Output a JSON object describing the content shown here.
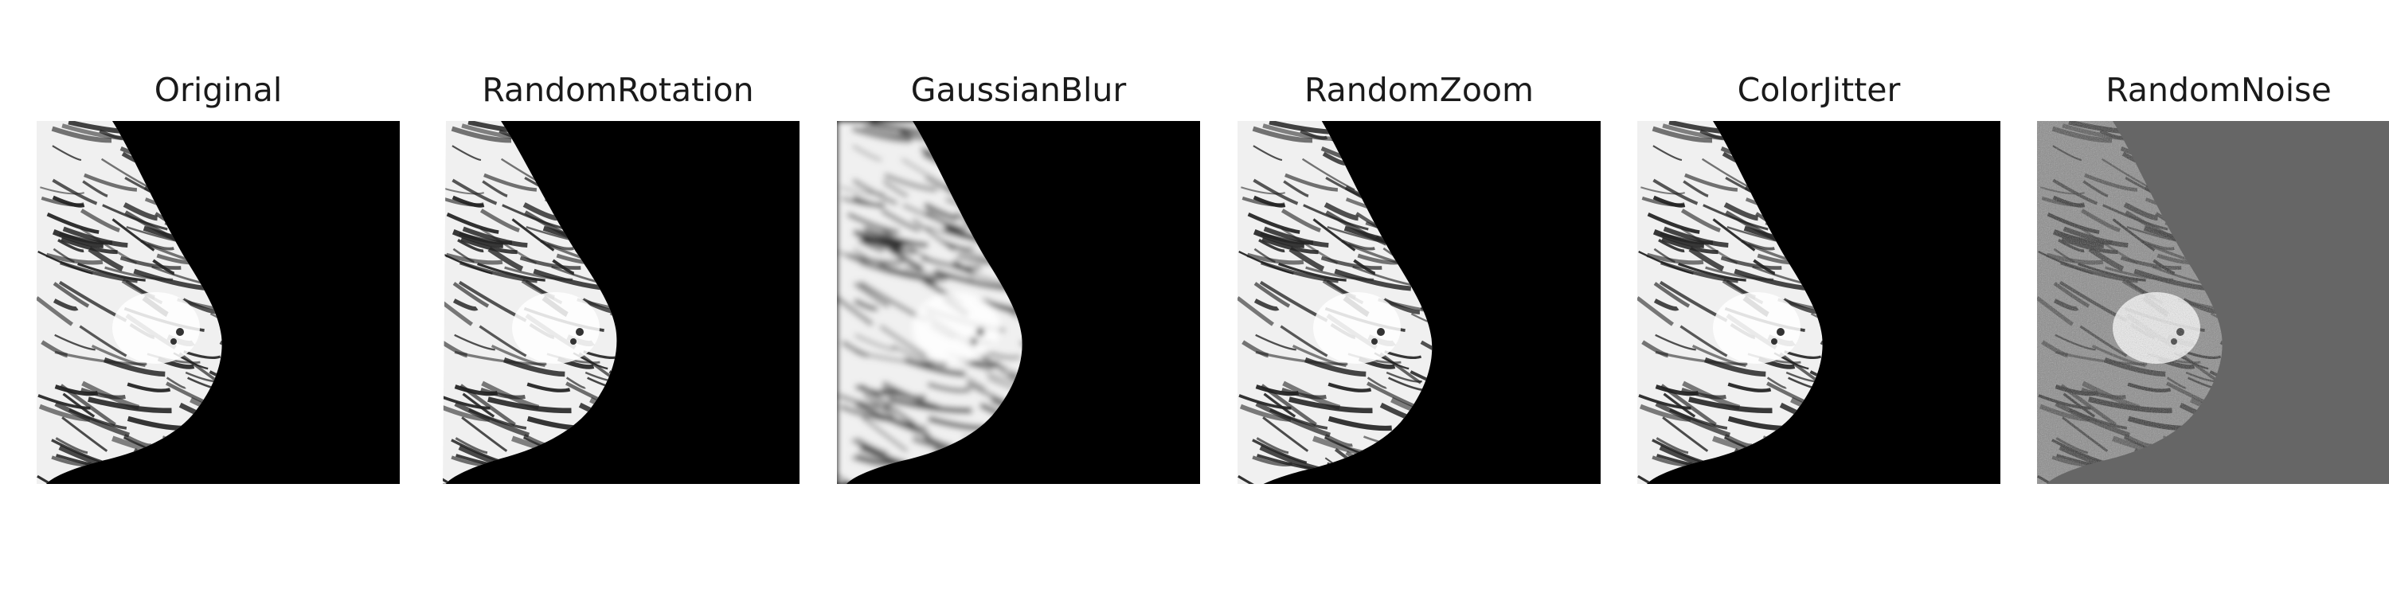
{
  "figure": {
    "panels": [
      {
        "title": "Original",
        "variant": "original"
      },
      {
        "title": "RandomRotation",
        "variant": "rotation"
      },
      {
        "title": "GaussianBlur",
        "variant": "blur"
      },
      {
        "title": "RandomZoom",
        "variant": "zoom"
      },
      {
        "title": "ColorJitter",
        "variant": "jitter"
      },
      {
        "title": "RandomNoise",
        "variant": "noise"
      }
    ],
    "colors": {
      "image_background": "#000000",
      "noise_background": "#666666",
      "tissue_light": "#ffffff",
      "tissue_dark": "#3a3a3a"
    }
  }
}
